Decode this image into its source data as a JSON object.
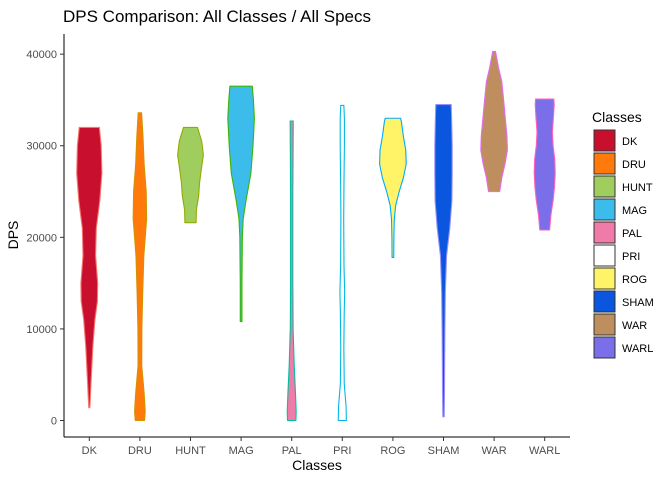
{
  "chart_data": {
    "type": "violin",
    "title": "DPS Comparison: All Classes / All Specs",
    "xlabel": "Classes",
    "ylabel": "DPS",
    "ylim": [
      -1800,
      42200
    ],
    "yticks": [
      0,
      10000,
      20000,
      30000,
      40000
    ],
    "legend": {
      "title": "Classes",
      "position": "right"
    },
    "categories": [
      "DK",
      "DRU",
      "HUNT",
      "MAG",
      "PAL",
      "PRI",
      "ROG",
      "SHAM",
      "WAR",
      "WARL"
    ],
    "series": [
      {
        "name": "DK",
        "fill": "#c8102e",
        "stroke": "#f8766d",
        "profile": [
          [
            1400,
            0.04
          ],
          [
            4000,
            0.12
          ],
          [
            8000,
            0.25
          ],
          [
            11000,
            0.4
          ],
          [
            13000,
            0.58
          ],
          [
            15000,
            0.6
          ],
          [
            18000,
            0.45
          ],
          [
            21000,
            0.5
          ],
          [
            24000,
            0.75
          ],
          [
            27000,
            0.9
          ],
          [
            30000,
            0.85
          ],
          [
            32000,
            0.72
          ]
        ]
      },
      {
        "name": "DRU",
        "fill": "#ff7a0a",
        "stroke": "#d39200",
        "profile": [
          [
            0,
            0.33
          ],
          [
            1000,
            0.38
          ],
          [
            3000,
            0.3
          ],
          [
            6000,
            0.13
          ],
          [
            10000,
            0.14
          ],
          [
            14000,
            0.2
          ],
          [
            18000,
            0.28
          ],
          [
            22000,
            0.48
          ],
          [
            25000,
            0.45
          ],
          [
            28000,
            0.3
          ],
          [
            31000,
            0.22
          ],
          [
            33600,
            0.12
          ]
        ]
      },
      {
        "name": "HUNT",
        "fill": "#a0ce5e",
        "stroke": "#93aa00",
        "profile": [
          [
            21600,
            0.4
          ],
          [
            23000,
            0.42
          ],
          [
            24500,
            0.58
          ],
          [
            26000,
            0.65
          ],
          [
            27500,
            0.78
          ],
          [
            29000,
            0.92
          ],
          [
            30500,
            0.8
          ],
          [
            32000,
            0.5
          ]
        ]
      },
      {
        "name": "MAG",
        "fill": "#3cbcea",
        "stroke": "#39b600",
        "profile": [
          [
            10800,
            0.06
          ],
          [
            15000,
            0.06
          ],
          [
            20000,
            0.09
          ],
          [
            22000,
            0.15
          ],
          [
            24000,
            0.35
          ],
          [
            27000,
            0.7
          ],
          [
            30000,
            0.85
          ],
          [
            33000,
            0.95
          ],
          [
            35000,
            0.88
          ],
          [
            36500,
            0.8
          ]
        ]
      },
      {
        "name": "PAL",
        "fill": "#f07aa8",
        "stroke": "#00c19f",
        "profile": [
          [
            0,
            0.3
          ],
          [
            1000,
            0.32
          ],
          [
            3000,
            0.27
          ],
          [
            6000,
            0.18
          ],
          [
            10000,
            0.1
          ],
          [
            15000,
            0.08
          ],
          [
            20000,
            0.08
          ],
          [
            25000,
            0.08
          ],
          [
            30000,
            0.1
          ],
          [
            32700,
            0.11
          ]
        ]
      },
      {
        "name": "PRI",
        "fill": "#ffffff",
        "stroke": "#00b9e3",
        "profile": [
          [
            0,
            0.29
          ],
          [
            1500,
            0.27
          ],
          [
            4000,
            0.14
          ],
          [
            8000,
            0.11
          ],
          [
            12000,
            0.14
          ],
          [
            14000,
            0.17
          ],
          [
            17000,
            0.12
          ],
          [
            22000,
            0.1
          ],
          [
            26000,
            0.12
          ],
          [
            30000,
            0.15
          ],
          [
            33000,
            0.15
          ],
          [
            34400,
            0.11
          ]
        ]
      },
      {
        "name": "ROG",
        "fill": "#fff468",
        "stroke": "#00a9ff",
        "profile": [
          [
            17800,
            0.06
          ],
          [
            20000,
            0.07
          ],
          [
            22000,
            0.1
          ],
          [
            23500,
            0.2
          ],
          [
            25000,
            0.45
          ],
          [
            26500,
            0.75
          ],
          [
            28000,
            0.95
          ],
          [
            29500,
            0.92
          ],
          [
            31000,
            0.75
          ],
          [
            32500,
            0.62
          ],
          [
            33000,
            0.55
          ]
        ]
      },
      {
        "name": "SHAM",
        "fill": "#0a56de",
        "stroke": "#9590ff",
        "profile": [
          [
            400,
            0.05
          ],
          [
            3000,
            0.07
          ],
          [
            6000,
            0.08
          ],
          [
            10000,
            0.1
          ],
          [
            14000,
            0.13
          ],
          [
            18000,
            0.22
          ],
          [
            21000,
            0.45
          ],
          [
            24000,
            0.6
          ],
          [
            27000,
            0.62
          ],
          [
            30000,
            0.62
          ],
          [
            33000,
            0.58
          ],
          [
            34500,
            0.55
          ]
        ]
      },
      {
        "name": "WAR",
        "fill": "#bf8e5e",
        "stroke": "#e76bf3",
        "profile": [
          [
            25000,
            0.4
          ],
          [
            26500,
            0.55
          ],
          [
            28000,
            0.78
          ],
          [
            29500,
            0.95
          ],
          [
            31000,
            0.92
          ],
          [
            33000,
            0.8
          ],
          [
            35000,
            0.68
          ],
          [
            37000,
            0.55
          ],
          [
            38500,
            0.32
          ],
          [
            40300,
            0.1
          ]
        ]
      },
      {
        "name": "WARL",
        "fill": "#7b6ee9",
        "stroke": "#ff62bc",
        "profile": [
          [
            20800,
            0.35
          ],
          [
            22500,
            0.45
          ],
          [
            24000,
            0.6
          ],
          [
            25500,
            0.7
          ],
          [
            27000,
            0.75
          ],
          [
            28500,
            0.72
          ],
          [
            30000,
            0.6
          ],
          [
            31500,
            0.55
          ],
          [
            33000,
            0.62
          ],
          [
            34500,
            0.68
          ],
          [
            35100,
            0.65
          ]
        ]
      }
    ]
  }
}
